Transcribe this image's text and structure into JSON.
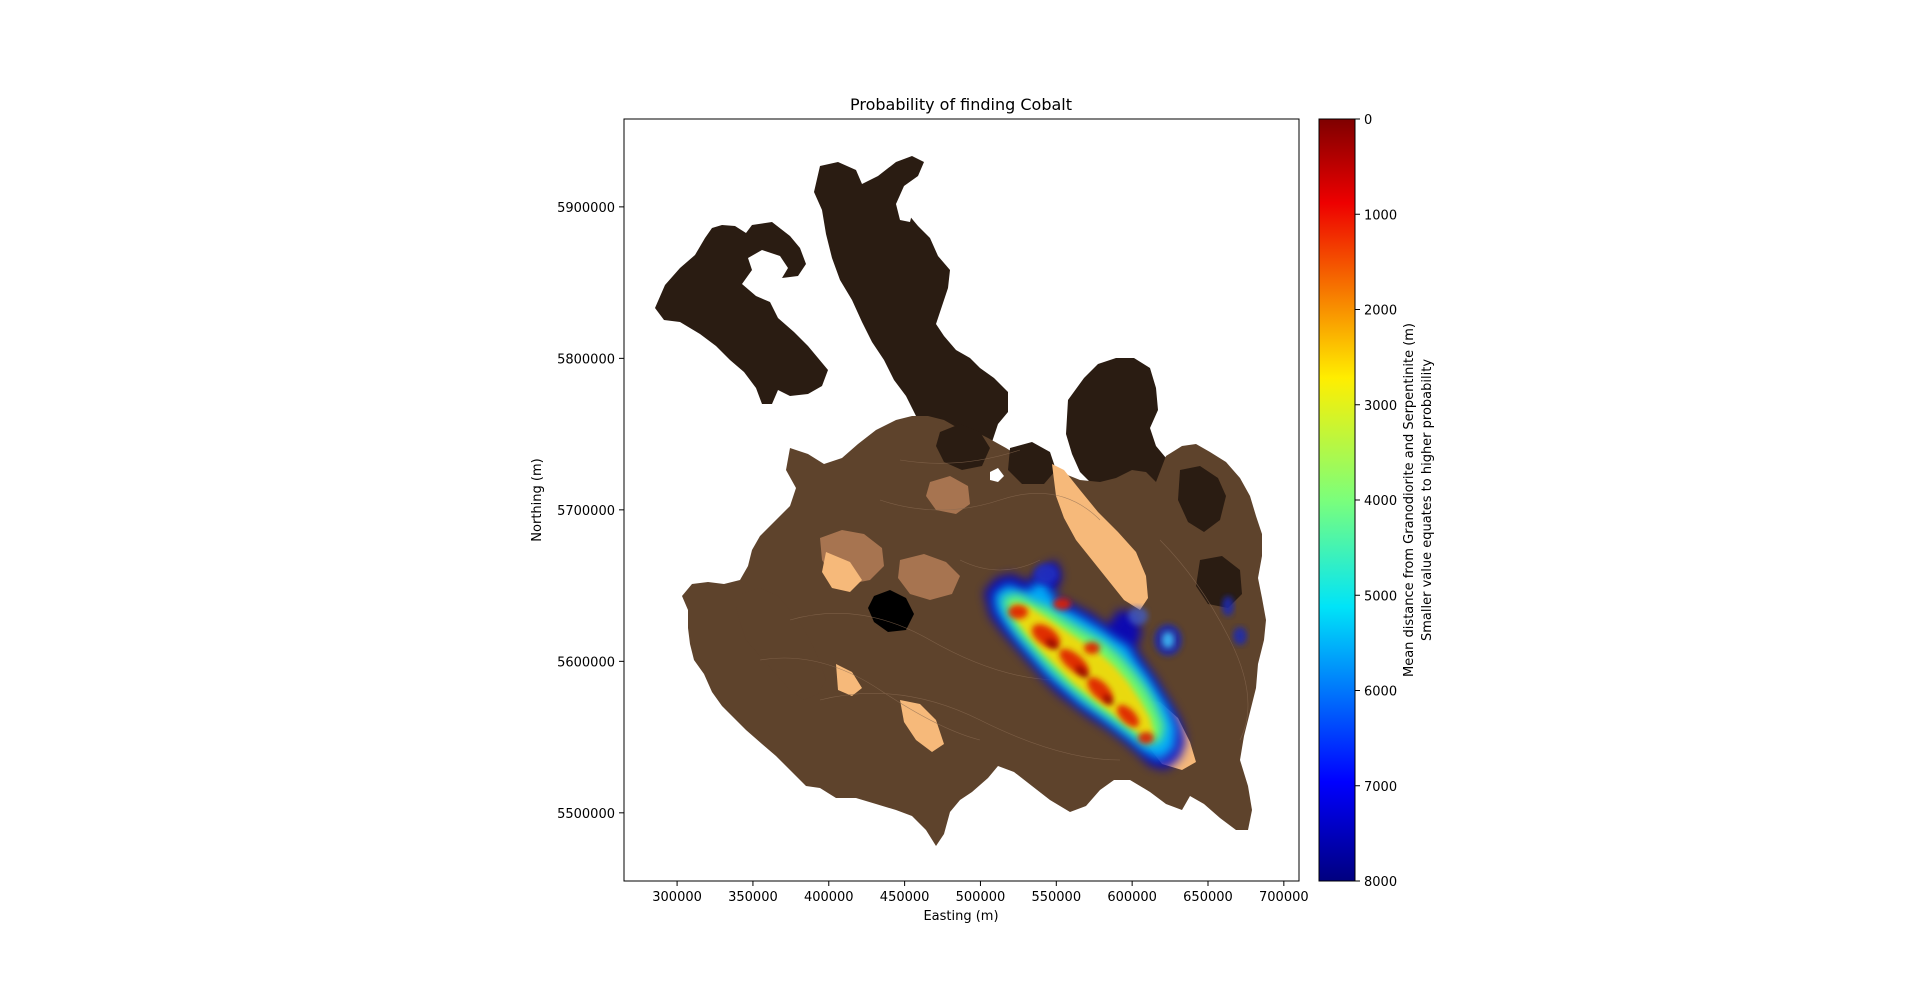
{
  "chart_data": {
    "type": "heatmap",
    "title": "Probability of finding Cobalt",
    "xlabel": "Easting (m)",
    "ylabel": "Northing (m)",
    "xlim": [
      265000,
      710000
    ],
    "ylim": [
      5455000,
      5958000
    ],
    "x_ticks": [
      {
        "value": 300000,
        "label": "300000"
      },
      {
        "value": 350000,
        "label": "350000"
      },
      {
        "value": 400000,
        "label": "400000"
      },
      {
        "value": 450000,
        "label": "450000"
      },
      {
        "value": 500000,
        "label": "500000"
      },
      {
        "value": 550000,
        "label": "550000"
      },
      {
        "value": 600000,
        "label": "600000"
      },
      {
        "value": 650000,
        "label": "650000"
      },
      {
        "value": 700000,
        "label": "700000"
      }
    ],
    "y_ticks": [
      {
        "value": 5500000,
        "label": "5500000"
      },
      {
        "value": 5600000,
        "label": "5600000"
      },
      {
        "value": 5700000,
        "label": "5700000"
      },
      {
        "value": 5800000,
        "label": "5800000"
      },
      {
        "value": 5900000,
        "label": "5900000"
      }
    ],
    "colorbar": {
      "label_line1": "Mean distance from Granodiorite and Serpentinite (m)",
      "label_line2": "Smaller value equates to higher probability",
      "range": [
        0,
        8000
      ],
      "colormap": "jet_reversed",
      "ticks": [
        {
          "value": 0,
          "label": "0"
        },
        {
          "value": 1000,
          "label": "1000"
        },
        {
          "value": 2000,
          "label": "2000"
        },
        {
          "value": 3000,
          "label": "3000"
        },
        {
          "value": 4000,
          "label": "4000"
        },
        {
          "value": 5000,
          "label": "5000"
        },
        {
          "value": 6000,
          "label": "6000"
        },
        {
          "value": 7000,
          "label": "7000"
        },
        {
          "value": 8000,
          "label": "8000"
        }
      ]
    },
    "colors": {
      "dark_geology": "#2a1c12",
      "mid_geology": "#5e432c",
      "light_geology": "#a77450",
      "pale_geology": "#f6b97a",
      "black_unit": "#000000"
    }
  }
}
